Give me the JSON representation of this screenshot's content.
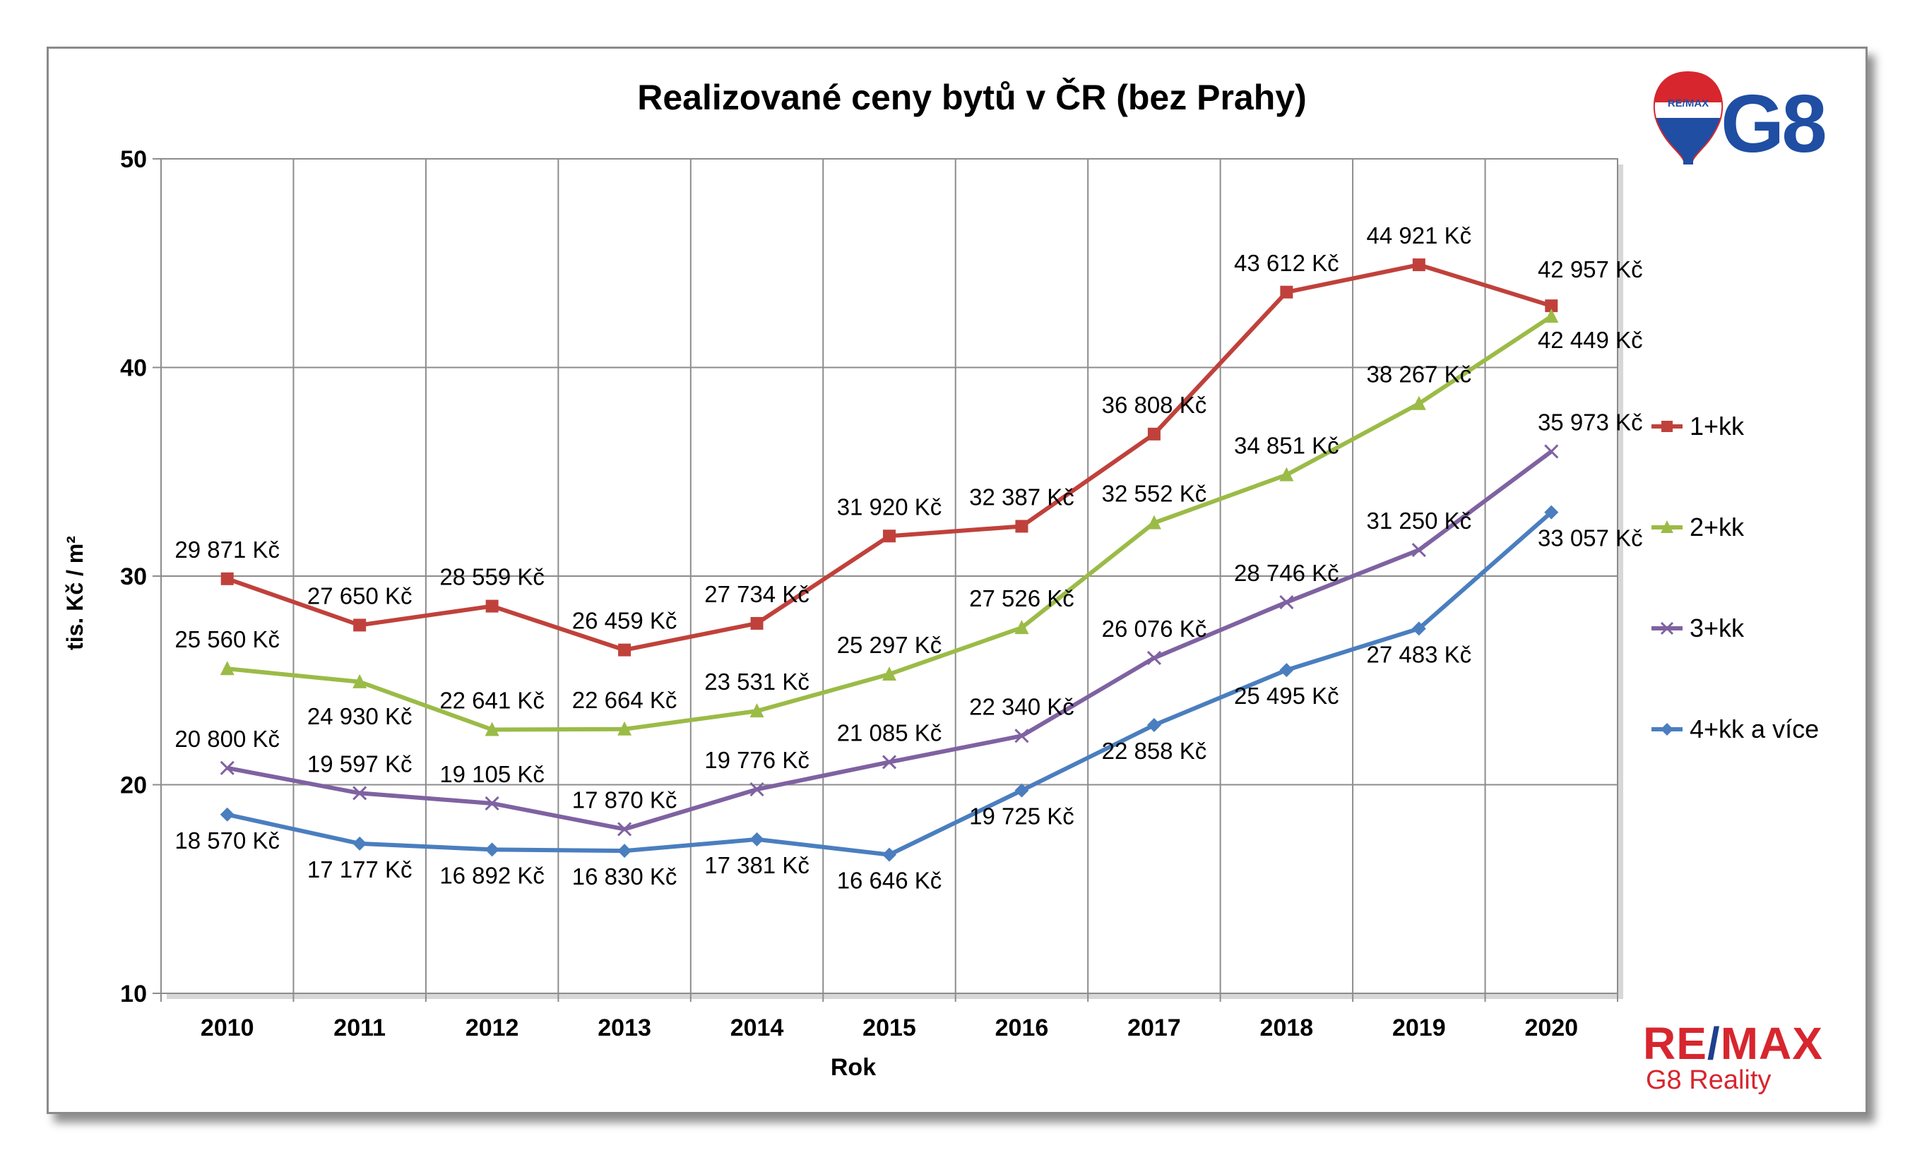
{
  "chart_data": {
    "type": "line",
    "title": "Realizované ceny bytů v ČR (bez Prahy)",
    "xlabel": "Rok",
    "ylabel": "tis. Kč / m²",
    "ylim": [
      10,
      50
    ],
    "yticks": [
      "10",
      "20",
      "30",
      "40",
      "50"
    ],
    "grid": true,
    "legend_position": "right",
    "categories": [
      "2010",
      "2011",
      "2012",
      "2013",
      "2014",
      "2015",
      "2016",
      "2017",
      "2018",
      "2019",
      "2020"
    ],
    "series": [
      {
        "name": "1+kk",
        "color": "#c0413b",
        "marker": "square",
        "values": [
          29.871,
          27.65,
          28.559,
          26.459,
          27.734,
          31.92,
          32.387,
          36.808,
          43.612,
          44.921,
          42.957
        ],
        "labels": [
          "29 871 Kč",
          "27 650 Kč",
          "28 559 Kč",
          "26 459 Kč",
          "27 734 Kč",
          "31 920 Kč",
          "32 387 Kč",
          "36 808 Kč",
          "43 612 Kč",
          "44 921 Kč",
          "42 957 Kč"
        ]
      },
      {
        "name": "2+kk",
        "color": "#9bbb47",
        "marker": "triangle",
        "values": [
          25.56,
          24.93,
          22.641,
          22.664,
          23.531,
          25.297,
          27.526,
          32.552,
          34.851,
          38.267,
          42.449
        ],
        "labels": [
          "25 560 Kč",
          "24 930 Kč",
          "22 641 Kč",
          "22 664 Kč",
          "23 531 Kč",
          "25 297 Kč",
          "27 526 Kč",
          "32 552 Kč",
          "34 851 Kč",
          "38 267 Kč",
          "42 449 Kč"
        ]
      },
      {
        "name": "3+kk",
        "color": "#7f62a1",
        "marker": "x",
        "values": [
          20.8,
          19.597,
          19.105,
          17.87,
          19.776,
          21.085,
          22.34,
          26.076,
          28.746,
          31.25,
          35.973
        ],
        "labels": [
          "20 800 Kč",
          "19 597 Kč",
          "19 105 Kč",
          "17 870 Kč",
          "19 776 Kč",
          "21 085 Kč",
          "22 340 Kč",
          "26 076 Kč",
          "28 746 Kč",
          "31 250 Kč",
          "35 973 Kč"
        ]
      },
      {
        "name": "4+kk a více",
        "color": "#4a7ebf",
        "marker": "diamond",
        "values": [
          18.57,
          17.177,
          16.892,
          16.83,
          17.381,
          16.646,
          19.725,
          22.858,
          25.495,
          27.483,
          33.057
        ],
        "labels": [
          "18 570 Kč",
          "17 177 Kč",
          "16 892 Kč",
          "16 830 Kč",
          "17 381 Kč",
          "16 646 Kč",
          "19 725 Kč",
          "22 858 Kč",
          "25 495 Kč",
          "27 483 Kč",
          "33 057 Kč"
        ]
      }
    ]
  },
  "logos": {
    "top_right": {
      "balloon_text": "RE/MAX",
      "text": "G8"
    },
    "bottom_right": {
      "part1": "RE",
      "slash": "/",
      "part2": "MAX",
      "subtitle": "G8 Reality"
    }
  }
}
